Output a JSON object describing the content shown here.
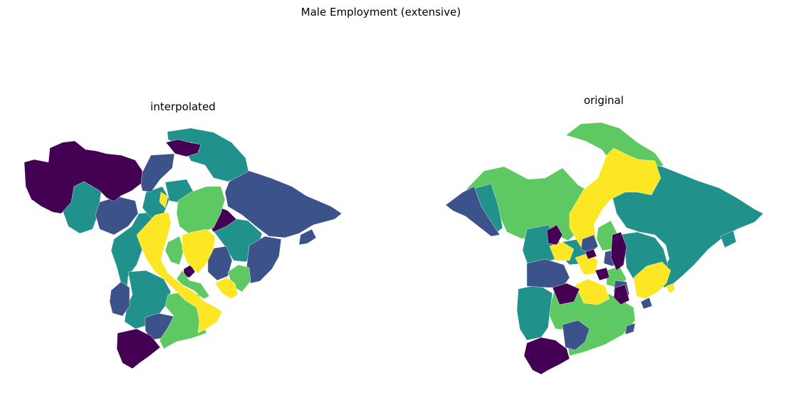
{
  "figure": {
    "title": "Male Employment (extensive)"
  },
  "panels": [
    {
      "title": "interpolated"
    },
    {
      "title": "original"
    }
  ],
  "colormap": {
    "name": "viridis",
    "bins": [
      "#440154",
      "#3b528b",
      "#21918c",
      "#5ec962",
      "#fde725"
    ]
  }
}
